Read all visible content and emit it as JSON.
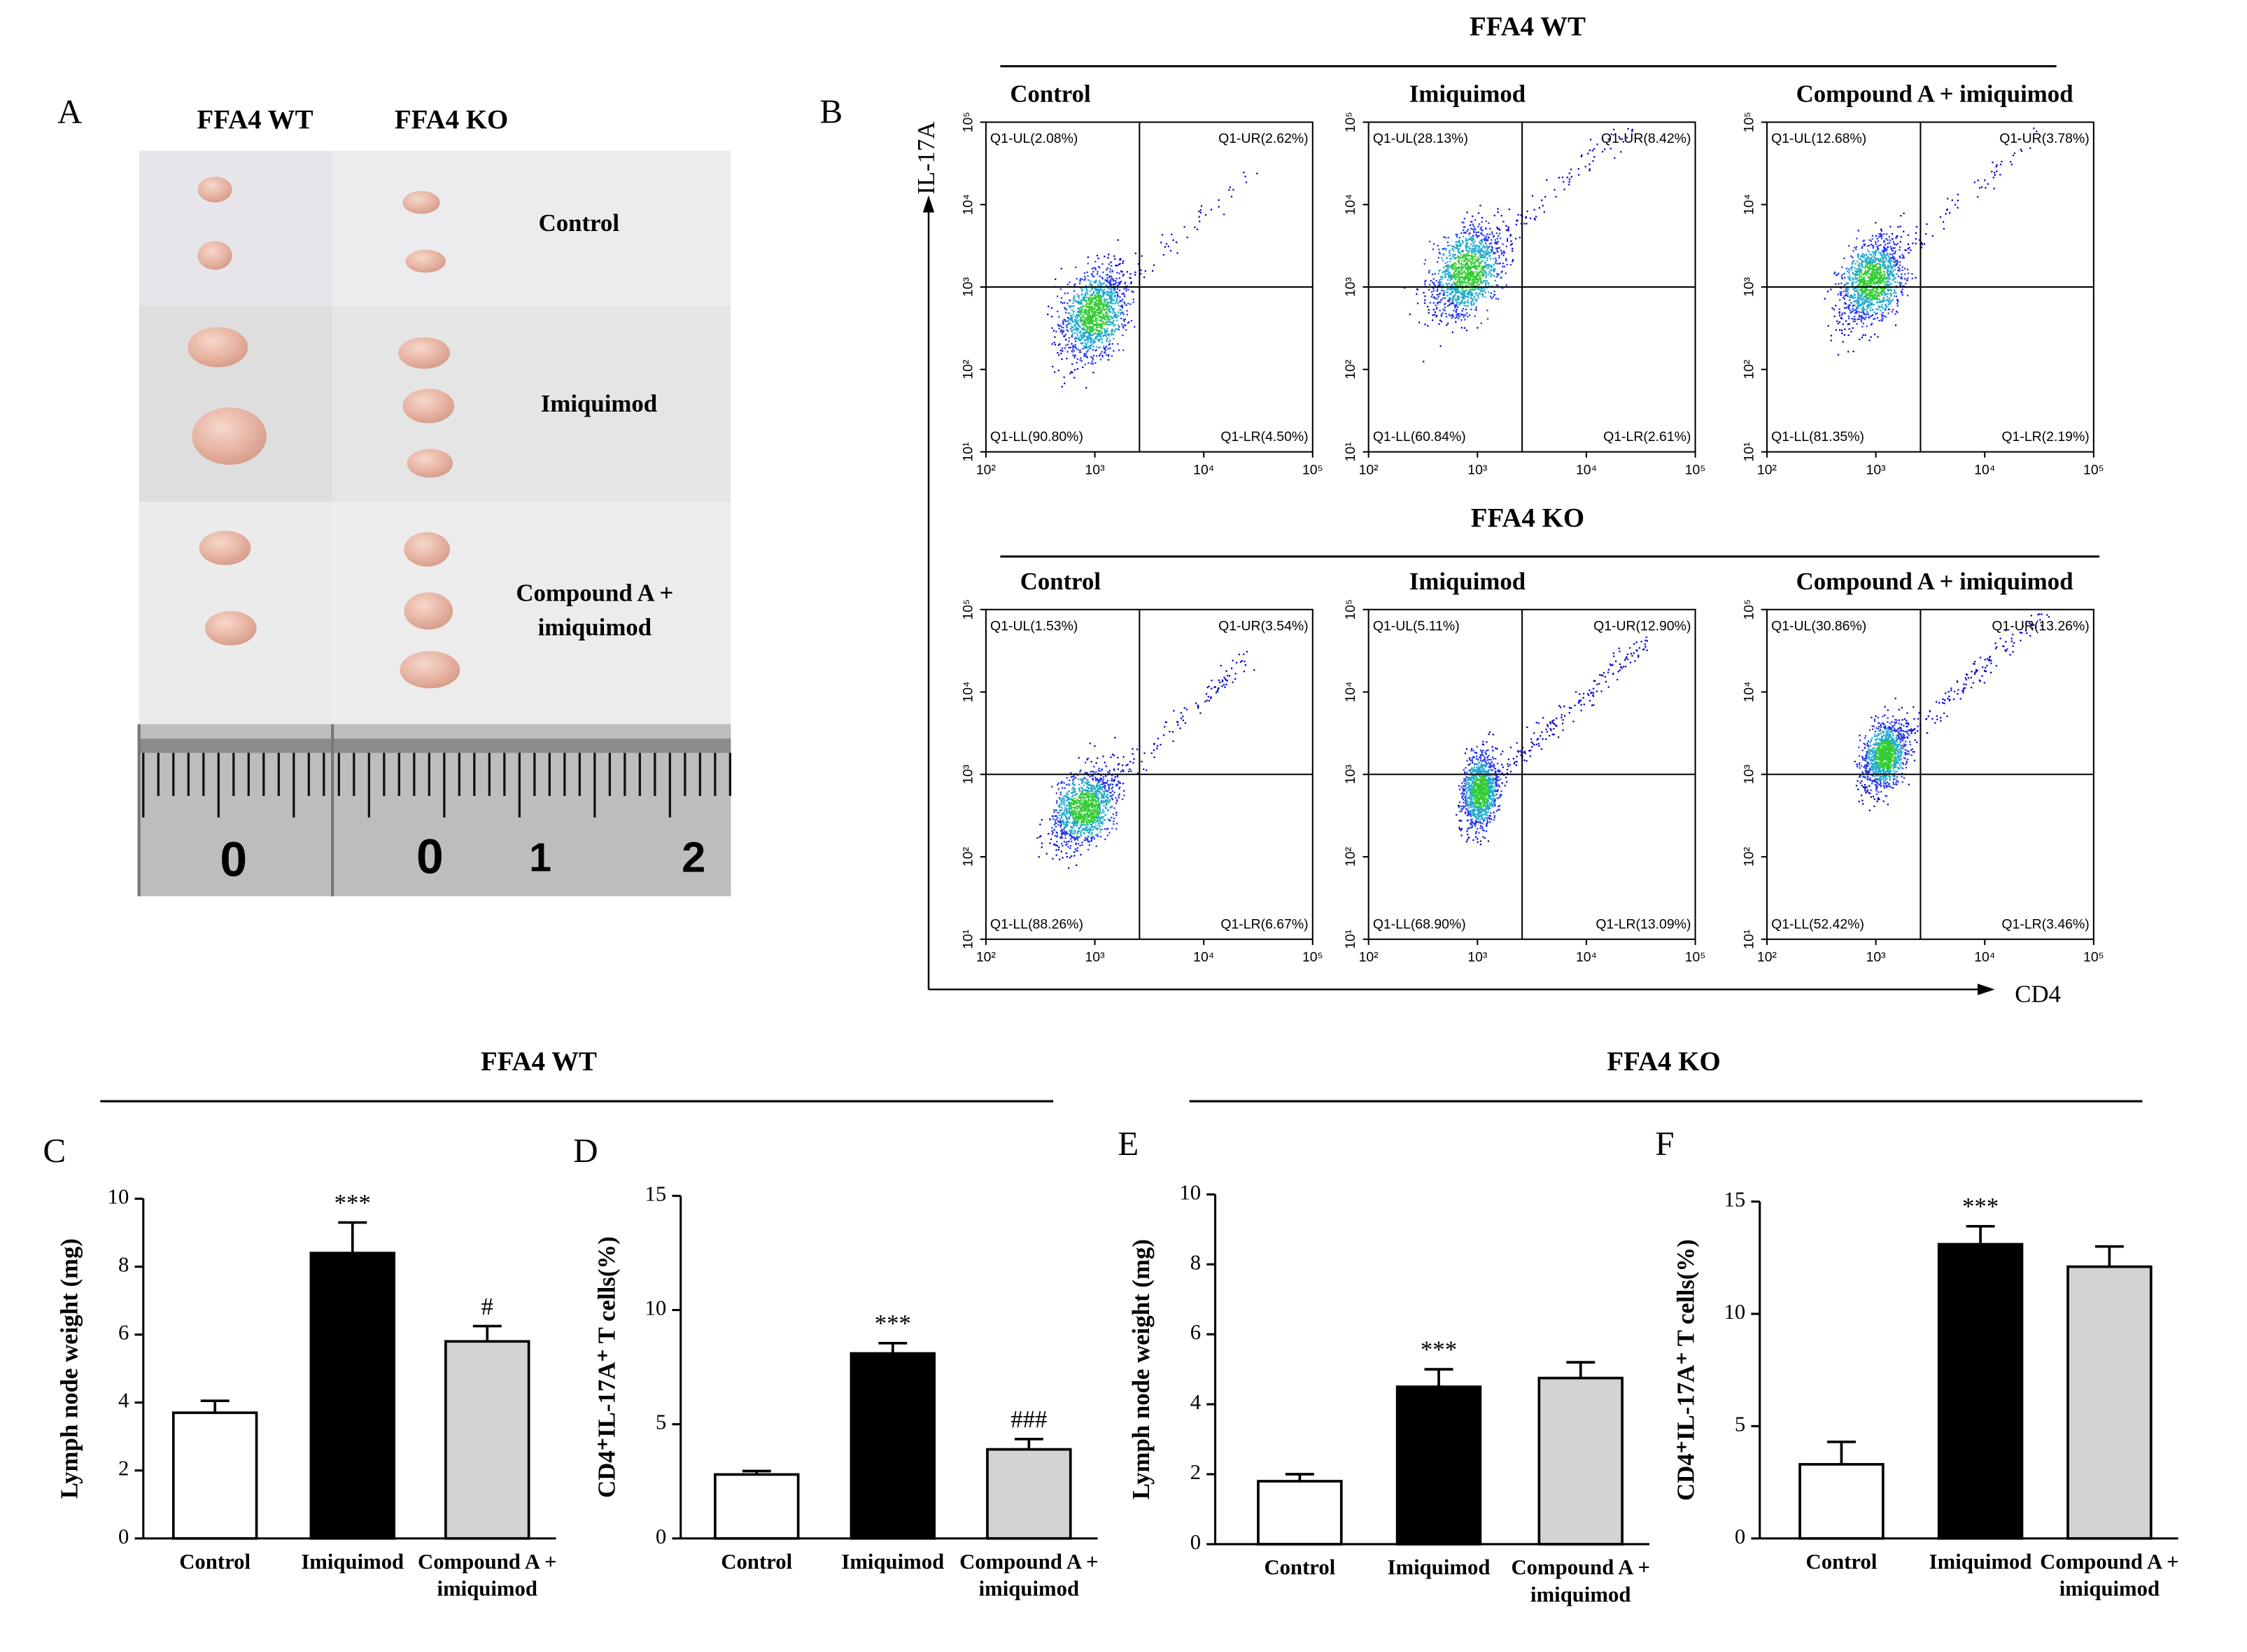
{
  "panel_a": {
    "label": "A",
    "columns": [
      "FFA4 WT",
      "FFA4 KO"
    ],
    "rows": [
      "Control",
      "Imiquimod",
      "Compound A + imiquimod"
    ],
    "ruler": [
      "0",
      "0",
      "1",
      "2"
    ]
  },
  "panel_b": {
    "label": "B",
    "y_axis": "IL-17A",
    "x_axis": "CD4",
    "xlim": [
      100,
      100000
    ],
    "ylim": [
      10,
      100000
    ],
    "log_scale": true,
    "xticks": [
      {
        "value": 100,
        "label": "10²"
      },
      {
        "value": 1000,
        "label": "10³"
      },
      {
        "value": 10000,
        "label": "10⁴"
      },
      {
        "value": 100000,
        "label": "10⁵"
      }
    ],
    "yticks": [
      {
        "value": 10,
        "label": "10¹"
      },
      {
        "value": 100,
        "label": "10²"
      },
      {
        "value": 1000,
        "label": "10³"
      },
      {
        "value": 10000,
        "label": "10⁴"
      },
      {
        "value": 100000,
        "label": "10⁵"
      }
    ],
    "groups": [
      {
        "title": "FFA4 WT",
        "plots": [
          {
            "title": "Control",
            "quadrants": [
              "Q1-UL(2.08%)",
              "Q1-UR(2.62%)",
              "Q1-LL(90.80%)",
              "Q1-LR(4.50%)"
            ]
          },
          {
            "title": "Imiquimod",
            "quadrants": [
              "Q1-UL(28.13%)",
              "Q1-UR(8.42%)",
              "Q1-LL(60.84%)",
              "Q1-LR(2.61%)"
            ]
          },
          {
            "title": "Compound A + imiquimod",
            "quadrants": [
              "Q1-UL(12.68%)",
              "Q1-UR(3.78%)",
              "Q1-LL(81.35%)",
              "Q1-LR(2.19%)"
            ]
          }
        ]
      },
      {
        "title": "FFA4 KO",
        "plots": [
          {
            "title": "Control",
            "quadrants": [
              "Q1-UL(1.53%)",
              "Q1-UR(3.54%)",
              "Q1-LL(88.26%)",
              "Q1-LR(6.67%)"
            ]
          },
          {
            "title": "Imiquimod",
            "quadrants": [
              "Q1-UL(5.11%)",
              "Q1-UR(12.90%)",
              "Q1-LL(68.90%)",
              "Q1-LR(13.09%)"
            ]
          },
          {
            "title": "Compound A + imiquimod",
            "quadrants": [
              "Q1-UL(30.86%)",
              "Q1-UR(13.26%)",
              "Q1-LL(52.42%)",
              "Q1-LR(3.46%)"
            ]
          }
        ]
      }
    ]
  },
  "group_titles": [
    "FFA4 WT",
    "FFA4 KO"
  ],
  "chart_data": [
    {
      "type": "bar",
      "panel_label": "C",
      "y_label": "Lymph node weight (mg)",
      "categories": [
        "Control",
        "Imiquimod",
        "Compound A + imiquimod"
      ],
      "values": [
        3.7,
        8.4,
        5.8
      ],
      "errors": [
        0.35,
        0.9,
        0.45
      ],
      "annotations": [
        null,
        "***",
        "#"
      ],
      "colors": [
        "#ffffff",
        "#000000",
        "#d3d3d3"
      ],
      "ylim": [
        0,
        10
      ],
      "yticks": [
        0,
        2,
        4,
        6,
        8,
        10
      ]
    },
    {
      "type": "bar",
      "panel_label": "D",
      "y_label": "CD4⁺IL-17A⁺ T cells(%)",
      "categories": [
        "Control",
        "Imiquimod",
        "Compound A + imiquimod"
      ],
      "values": [
        2.8,
        8.1,
        3.9
      ],
      "errors": [
        0.15,
        0.45,
        0.45
      ],
      "annotations": [
        null,
        "***",
        "###"
      ],
      "colors": [
        "#ffffff",
        "#000000",
        "#d3d3d3"
      ],
      "ylim": [
        0,
        15
      ],
      "yticks": [
        0,
        5,
        10,
        15
      ]
    },
    {
      "type": "bar",
      "panel_label": "E",
      "y_label": "Lymph node weight (mg)",
      "categories": [
        "Control",
        "Imiquimod",
        "Compound A + imiquimod"
      ],
      "values": [
        1.8,
        4.5,
        4.75
      ],
      "errors": [
        0.2,
        0.5,
        0.45
      ],
      "annotations": [
        null,
        "***",
        null
      ],
      "colors": [
        "#ffffff",
        "#000000",
        "#d3d3d3"
      ],
      "ylim": [
        0,
        10
      ],
      "yticks": [
        0,
        2,
        4,
        6,
        8,
        10
      ]
    },
    {
      "type": "bar",
      "panel_label": "F",
      "y_label": "CD4⁺IL-17A⁺ T cells(%)",
      "categories": [
        "Control",
        "Imiquimod",
        "Compound A + imiquimod"
      ],
      "values": [
        3.3,
        13.1,
        12.1
      ],
      "errors": [
        1.0,
        0.8,
        0.9
      ],
      "annotations": [
        null,
        "***",
        null
      ],
      "colors": [
        "#ffffff",
        "#000000",
        "#d3d3d3"
      ],
      "ylim": [
        0,
        15
      ],
      "yticks": [
        0,
        5,
        10,
        15
      ]
    }
  ]
}
